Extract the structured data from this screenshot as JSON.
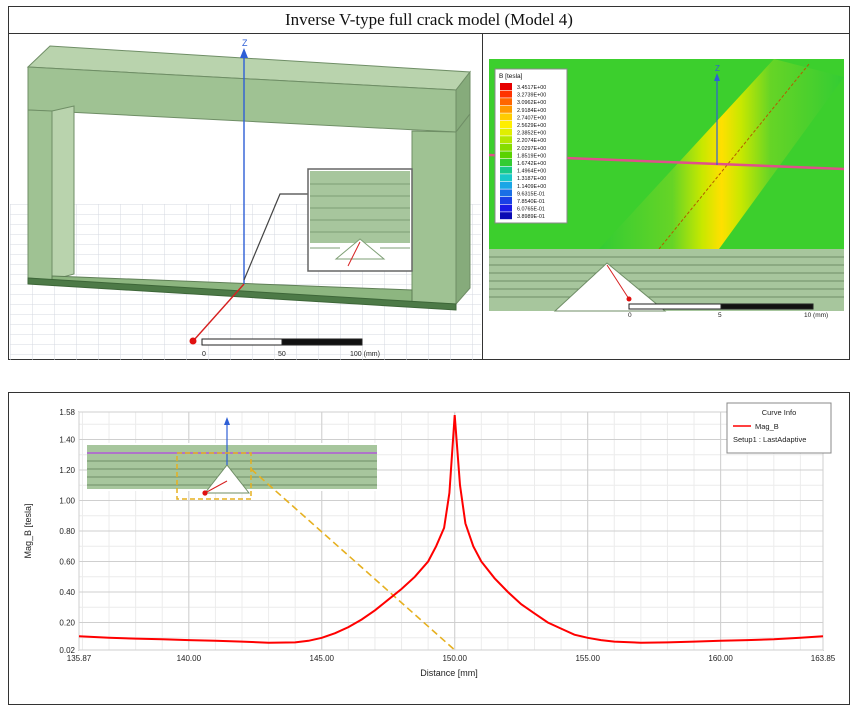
{
  "figure": {
    "title": "Inverse V-type full crack model (Model 4)"
  },
  "left_view": {
    "axis_label": "Z",
    "scale_ticks": [
      "0",
      "50",
      "100 (mm)"
    ]
  },
  "right_view": {
    "axis_label": "Z",
    "legend_title": "B [tesla]",
    "legend_values": [
      "3.4517E+00",
      "3.2739E+00",
      "3.0962E+00",
      "2.9184E+00",
      "2.7407E+00",
      "2.5629E+00",
      "2.3852E+00",
      "2.2074E+00",
      "2.0297E+00",
      "1.8519E+00",
      "1.6742E+00",
      "1.4964E+00",
      "1.3187E+00",
      "1.1409E+00",
      "9.6315E-01",
      "7.8540E-01",
      "6.0765E-01",
      "3.8989E-01"
    ],
    "legend_colors": [
      "#e60000",
      "#ff3300",
      "#ff6600",
      "#ff9900",
      "#ffcc00",
      "#ffee00",
      "#e0ee00",
      "#b4e600",
      "#86dc00",
      "#5ad200",
      "#33cc33",
      "#19c889",
      "#19c8c8",
      "#1aa6e6",
      "#1a6fe6",
      "#1a40e6",
      "#1a1ae6",
      "#0a0ab4"
    ],
    "scale_ticks": [
      "0",
      "5",
      "10 (mm)"
    ]
  },
  "chart_data": {
    "type": "line",
    "title": "",
    "xlabel": "Distance [mm]",
    "ylabel": "Mag_B [tesla]",
    "xlim": [
      135.87,
      163.85
    ],
    "ylim": [
      0.02,
      1.58
    ],
    "xticks": [
      "135.87",
      "140.00",
      "145.00",
      "150.00",
      "155.00",
      "160.00",
      "163.85"
    ],
    "xtick_values": [
      135.87,
      140,
      145,
      150,
      155,
      160,
      163.85
    ],
    "yticks": [
      "0.02",
      "0.20",
      "0.40",
      "0.60",
      "0.80",
      "1.00",
      "1.20",
      "1.40",
      "1.58"
    ],
    "ytick_values": [
      0.02,
      0.2,
      0.4,
      0.6,
      0.8,
      1.0,
      1.2,
      1.4,
      1.58
    ],
    "grid": true,
    "legend": {
      "title": "Curve Info",
      "placement": "top-right"
    },
    "series": [
      {
        "name": "Mag_B",
        "setup": "Setup1 : LastAdaptive",
        "color": "#ff0000",
        "x": [
          135.87,
          137.0,
          138.0,
          139.0,
          140.0,
          141.0,
          142.0,
          143.0,
          144.0,
          144.5,
          145.0,
          145.5,
          146.0,
          146.5,
          147.0,
          147.5,
          148.0,
          148.5,
          149.0,
          149.3,
          149.6,
          149.8,
          150.0,
          150.2,
          150.4,
          150.7,
          151.0,
          151.5,
          152.0,
          152.5,
          153.0,
          153.5,
          154.0,
          154.5,
          155.0,
          155.5,
          156.0,
          157.0,
          158.0,
          159.0,
          160.0,
          161.0,
          162.0,
          163.0,
          163.85
        ],
        "y": [
          0.11,
          0.1,
          0.095,
          0.09,
          0.085,
          0.08,
          0.075,
          0.068,
          0.07,
          0.08,
          0.1,
          0.13,
          0.17,
          0.22,
          0.28,
          0.35,
          0.42,
          0.5,
          0.6,
          0.7,
          0.82,
          1.05,
          1.56,
          1.1,
          0.85,
          0.7,
          0.6,
          0.49,
          0.4,
          0.32,
          0.26,
          0.2,
          0.16,
          0.12,
          0.1,
          0.085,
          0.075,
          0.068,
          0.07,
          0.075,
          0.08,
          0.085,
          0.09,
          0.1,
          0.11
        ]
      }
    ]
  }
}
